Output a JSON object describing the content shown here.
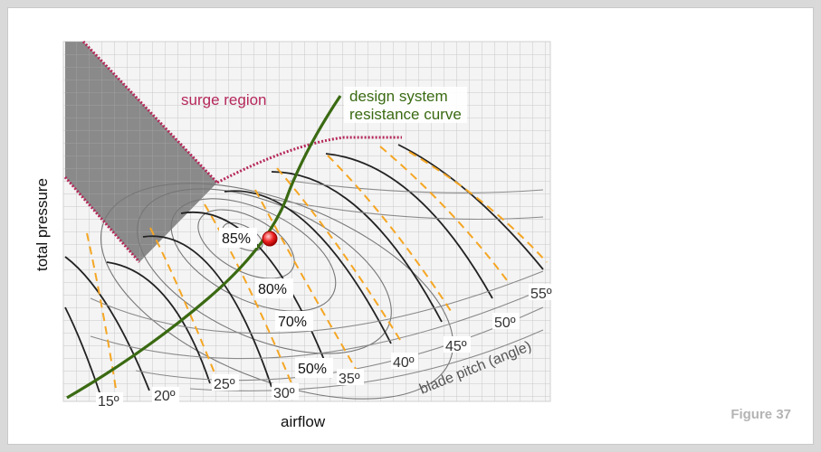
{
  "figure_label": "Figure 37",
  "axes": {
    "x_label": "airflow",
    "y_label": "total pressure"
  },
  "regions": {
    "surge": "surge region"
  },
  "curves": {
    "system_line1": "design system",
    "system_line2": "resistance curve"
  },
  "efficiency_labels": [
    "85%",
    "80%",
    "70%",
    "50%"
  ],
  "pitch_labels": [
    "15º",
    "20º",
    "25º",
    "30º",
    "35º",
    "40º",
    "45º",
    "50º",
    "55º"
  ],
  "pitch_title": "blade pitch (angle)",
  "colors": {
    "surge": "#b5285a",
    "system_curve": "#3a6a12",
    "dashed": "#f5a623",
    "surge_fill": "#8a8a8a",
    "grid": "#c9c9c9",
    "operating_point": "#e0101a"
  }
}
